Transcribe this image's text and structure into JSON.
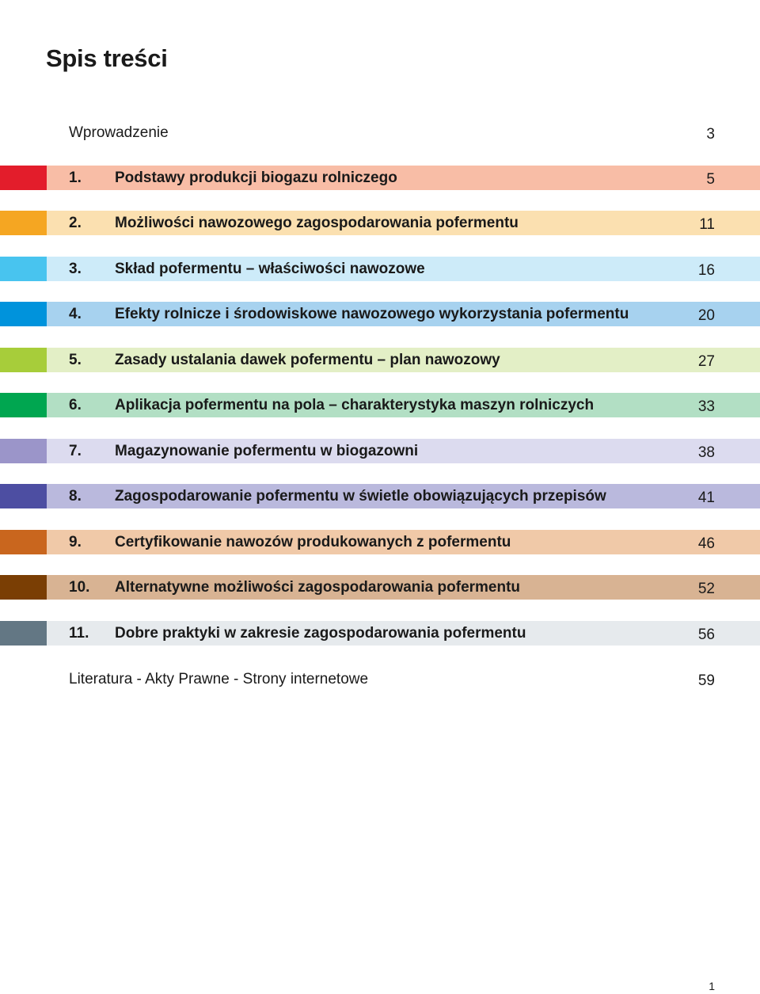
{
  "title": "Spis treści",
  "entries": [
    {
      "number": "",
      "label": "Wprowadzenie",
      "page": "3",
      "accent": "",
      "band": ""
    },
    {
      "number": "1.",
      "label": "Podstawy produkcji biogazu rolniczego",
      "page": "5",
      "accent": "#e31d2b",
      "band": "#f8bda6"
    },
    {
      "number": "2.",
      "label": "Możliwości nawozowego zagospodarowania pofermentu",
      "page": "11",
      "accent": "#f5a622",
      "band": "#fbe0b0"
    },
    {
      "number": "3.",
      "label": "Skład pofermentu – właściwości nawozowe",
      "page": "16",
      "accent": "#48c4ef",
      "band": "#cdebf9"
    },
    {
      "number": "4.",
      "label": "Efekty rolnicze i środowiskowe nawozowego wykorzystania pofermentu",
      "page": "20",
      "accent": "#0093dc",
      "band": "#a7d2ef"
    },
    {
      "number": "5.",
      "label": "Zasady ustalania dawek pofermentu – plan nawozowy",
      "page": "27",
      "accent": "#a7cd3a",
      "band": "#e3efc6"
    },
    {
      "number": "6.",
      "label": "Aplikacja pofermentu na pola – charakterystyka maszyn rolniczych",
      "page": "33",
      "accent": "#00a650",
      "band": "#b2dfc4"
    },
    {
      "number": "7.",
      "label": "Magazynowanie pofermentu w biogazowni",
      "page": "38",
      "accent": "#9b95c9",
      "band": "#dcdbef"
    },
    {
      "number": "8.",
      "label": "Zagospodarowanie pofermentu w świetle obowiązujących przepisów",
      "page": "41",
      "accent": "#4d4ea2",
      "band": "#bab9dd"
    },
    {
      "number": "9.",
      "label": "Certyfikowanie nawozów produkowanych z pofermentu",
      "page": "46",
      "accent": "#c9661e",
      "band": "#f0c9a8"
    },
    {
      "number": "10.",
      "label": "Alternatywne możliwości zagospodarowania pofermentu",
      "page": "52",
      "accent": "#7a3e04",
      "band": "#d8b393"
    },
    {
      "number": "11.",
      "label": "Dobre praktyki w zakresie zagospodarowania pofermentu",
      "page": "56",
      "accent": "#637784",
      "band": "#e6eaed"
    },
    {
      "number": "",
      "label": "Literatura - Akty Prawne - Strony internetowe",
      "page": "59",
      "accent": "",
      "band": ""
    }
  ],
  "folio": "1"
}
